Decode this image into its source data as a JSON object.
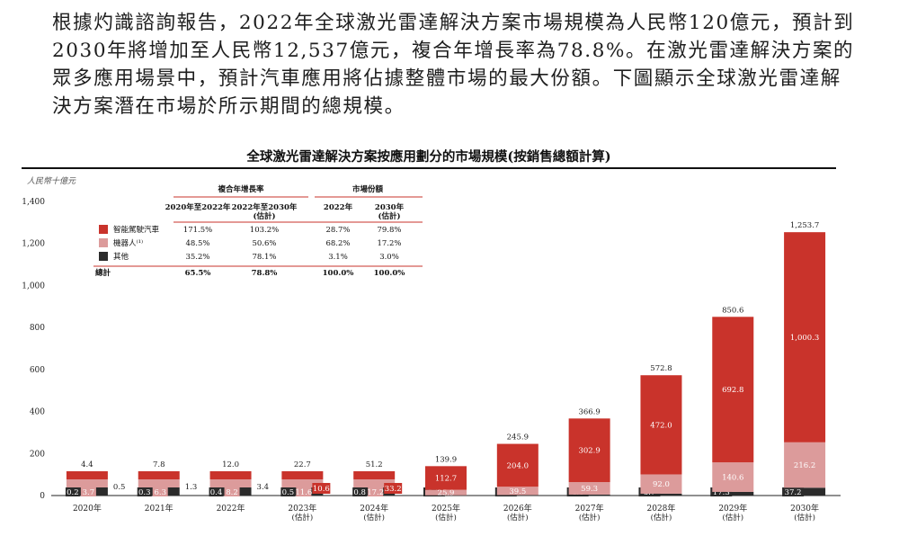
{
  "intro": {
    "paragraph": "根據灼識諮詢報告，2022年全球激光雷達解決方案市場規模為人民幣120億元，預計到2030年將增加至人民幣12,537億元，複合年增長率為78.8%。在激光雷達解決方案的眾多應用場景中，預計汽車應用將佔據整體市場的最大份額。下圖顯示全球激光雷達解決方案潛在市場於所示期間的總規模。"
  },
  "chart": {
    "title": "全球激光雷達解決方案按應用劃分的市場規模(按銷售總額計算)",
    "unit": "人民幣十億元",
    "table": {
      "group_cagr": "複合年增長率",
      "group_share": "市場份額",
      "col1": "2020年至2022年",
      "col2_line1": "2022年至2030年",
      "col2_line2": "(估計)",
      "col3": "2022年",
      "col4_line1": "2030年",
      "col4_line2": "(估計)",
      "rows": [
        {
          "label": "智能駕駛汽車",
          "c1": "171.5%",
          "c2": "103.2%",
          "c3": "28.7%",
          "c4": "79.8%"
        },
        {
          "label": "機器人⁽¹⁾",
          "c1": "48.5%",
          "c2": "50.6%",
          "c3": "68.2%",
          "c4": "17.2%"
        },
        {
          "label": "其他",
          "c1": "35.2%",
          "c2": "78.1%",
          "c3": "3.1%",
          "c4": "3.0%"
        }
      ],
      "total": {
        "label": "總計",
        "c1": "65.5%",
        "c2": "78.8%",
        "c3": "100.0%",
        "c4": "100.0%"
      }
    }
  },
  "chart_data": {
    "type": "bar",
    "stacked": true,
    "title": "全球激光雷達解決方案按應用劃分的市場規模(按銷售總額計算)",
    "ylabel": "人民幣十億元",
    "ylim": [
      0,
      1400
    ],
    "yticks": [
      "0",
      "200",
      "400",
      "600",
      "800",
      "1,000",
      "1,200",
      "1,400"
    ],
    "ytick_values": [
      0,
      200,
      400,
      600,
      800,
      1000,
      1200,
      1400
    ],
    "categories": [
      "2020年",
      "2021年",
      "2022年",
      "2023年",
      "2024年",
      "2025年",
      "2026年",
      "2027年",
      "2028年",
      "2029年",
      "2030年"
    ],
    "category_sub": [
      "",
      "",
      "",
      "(估計)",
      "(估計)",
      "(估計)",
      "(估計)",
      "(估計)",
      "(估計)",
      "(估計)",
      "(估計)"
    ],
    "series": [
      {
        "name": "其他",
        "color": "#2b2b2b",
        "values": [
          0.2,
          0.3,
          0.4,
          0.5,
          0.8,
          1.3,
          2.5,
          4.6,
          8.7,
          17.3,
          37.2
        ],
        "labels": [
          "0.2",
          "0.3",
          "0.4",
          "0.5",
          "0.8",
          "1.3",
          "2.5",
          "4.6",
          "8.7",
          "17.3",
          "37.2"
        ]
      },
      {
        "name": "機器人⁽¹⁾",
        "color": "#dc9b9b",
        "values": [
          3.7,
          6.3,
          8.2,
          11.6,
          17.2,
          25.9,
          39.5,
          59.3,
          92.0,
          140.6,
          216.2
        ],
        "labels": [
          "3.7",
          "6.3",
          "8.2",
          "11.6",
          "17.2",
          "25.9",
          "39.5",
          "59.3",
          "92.0",
          "140.6",
          "216.2"
        ]
      },
      {
        "name": "智能駕駛汽車",
        "color": "#c9332b",
        "values": [
          0.5,
          1.3,
          3.4,
          10.6,
          33.2,
          112.7,
          204.0,
          302.9,
          472.0,
          692.8,
          1000.3
        ],
        "labels": [
          "0.5",
          "1.3",
          "3.4",
          "10.6",
          "33.2",
          "112.7",
          "204.0",
          "302.9",
          "472.0",
          "692.8",
          "1,000.3"
        ]
      }
    ],
    "totals": [
      4.4,
      7.8,
      12.0,
      22.7,
      51.2,
      139.9,
      245.9,
      366.9,
      572.8,
      850.6,
      1253.7
    ],
    "total_labels": [
      "4.4",
      "7.8",
      "12.0",
      "22.7",
      "51.2",
      "139.9",
      "245.9",
      "366.9",
      "572.8",
      "850.6",
      "1,253.7"
    ],
    "grid": false,
    "legend": "top-left"
  }
}
